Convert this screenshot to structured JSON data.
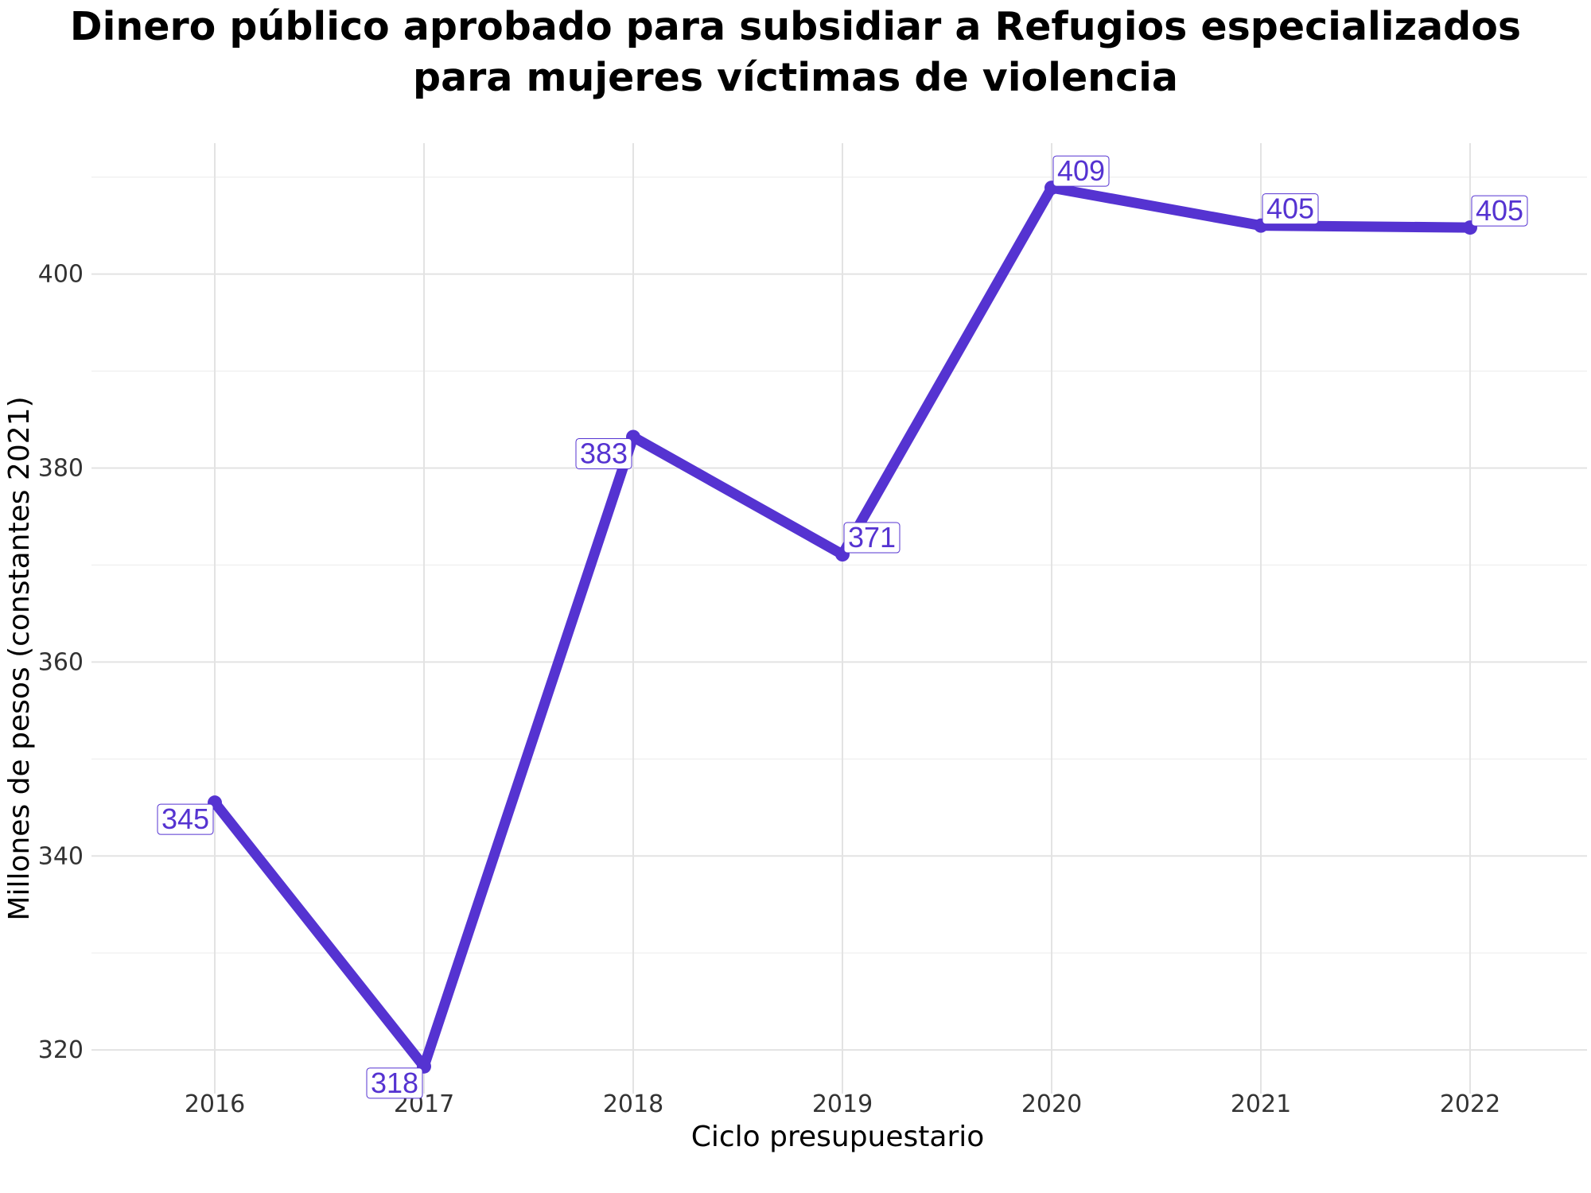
{
  "title": {
    "line1": "Dinero público aprobado para subsidiar a Refugios especializados",
    "line2": "para mujeres víctimas de violencia"
  },
  "chart_data": {
    "type": "line",
    "title": "Dinero público aprobado para subsidiar a Refugios especializados para mujeres víctimas de violencia",
    "xlabel": "Ciclo presupuestario",
    "ylabel": "Millones de pesos (constantes 2021)",
    "x": [
      "2016",
      "2017",
      "2018",
      "2019",
      "2020",
      "2021",
      "2022"
    ],
    "series": [
      {
        "values": [
          345.5,
          318.3,
          383.2,
          371.1,
          408.9,
          405.0,
          404.8
        ],
        "labels": [
          "345",
          "318",
          "383",
          "371",
          "409",
          "405",
          "405"
        ],
        "color": "#5533d1"
      }
    ],
    "y_ticks": [
      320,
      340,
      360,
      380,
      400
    ],
    "ylim": [
      315.5,
      413.5
    ],
    "grid": true,
    "legend": "none"
  }
}
